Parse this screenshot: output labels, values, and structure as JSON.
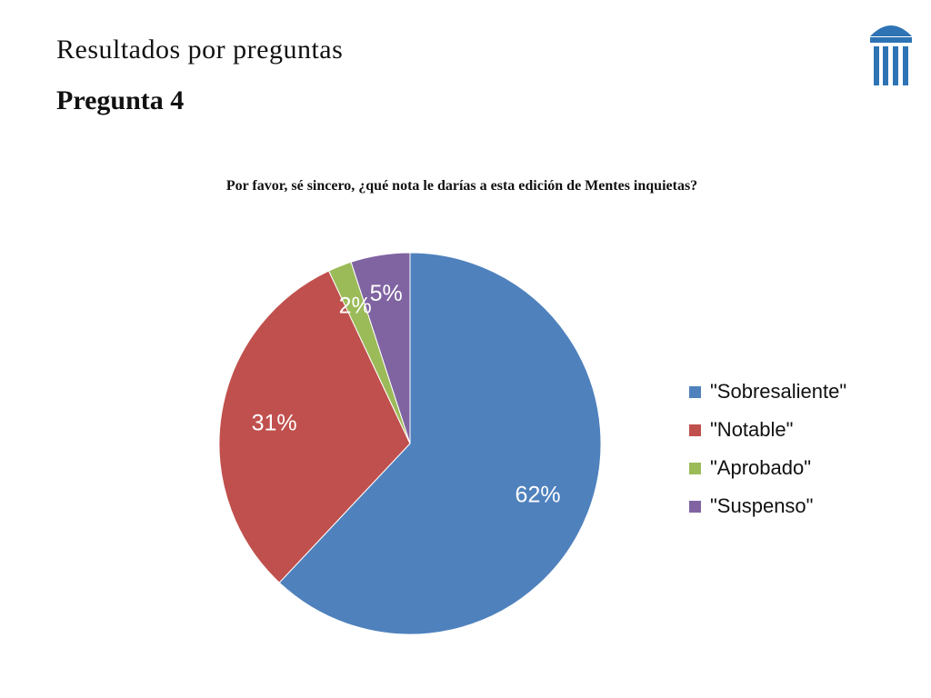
{
  "slide": {
    "heading": "Resultados por preguntas",
    "subheading": "Pregunta 4"
  },
  "logo": {
    "icon": "columns-building-logo-icon",
    "color": "#2E74B5"
  },
  "chart_data": {
    "type": "pie",
    "title": "Por favor, sé sincero, ¿qué nota le darías a esta edición de Mentes inquietas?",
    "legend_position": "right",
    "slices": [
      {
        "label": "\"Sobresaliente\"",
        "value": 62,
        "display": "62%",
        "color": "#4F81BD"
      },
      {
        "label": "\"Notable\"",
        "value": 31,
        "display": "31%",
        "color": "#C0504D"
      },
      {
        "label": "\"Aprobado\"",
        "value": 2,
        "display": "2%",
        "color": "#9BBB59"
      },
      {
        "label": "\"Suspenso\"",
        "value": 5,
        "display": "5%",
        "color": "#8064A2"
      }
    ]
  }
}
